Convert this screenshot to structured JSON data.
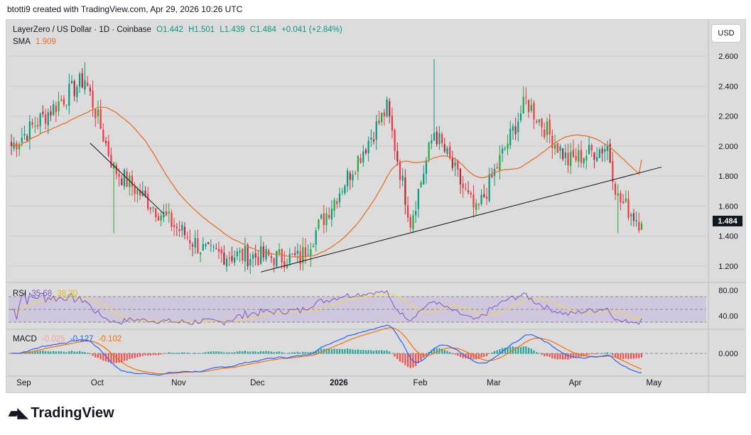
{
  "header": {
    "text": "btotti9 created with TradingView.com, Apr 29, 2026 10:26 UTC"
  },
  "legend": {
    "symbol": "LayerZero / US Dollar · 1D · Coinbase",
    "o": "O1.442",
    "h": "H1.501",
    "l": "L1.439",
    "c": "C1.484",
    "change": "+0.041 (+2.84%)",
    "sma_label": "SMA",
    "sma_value": "1.909"
  },
  "currency_button": "USD",
  "last_price": "1.484",
  "rsi": {
    "label": "RSI",
    "value": "35.68",
    "ma_value": "38.30"
  },
  "macd": {
    "label": "MACD",
    "hist_value": "-0.025",
    "macd_value": "-0.127",
    "signal_value": "-0.102"
  },
  "price_axis_labels": [
    "2.600",
    "2.400",
    "2.200",
    "2.000",
    "1.800",
    "1.600",
    "1.400",
    "1.200"
  ],
  "rsi_axis_labels": [
    "80.00",
    "40.00"
  ],
  "macd_axis_labels": [
    "0.000"
  ],
  "time_axis_labels": [
    "Sep",
    "Oct",
    "Nov",
    "Dec",
    "2026",
    "Feb",
    "Mar",
    "Apr",
    "May"
  ],
  "brand": "TradingView",
  "colors": {
    "up": "#089981",
    "up_bright": "#22ab39",
    "down": "#f23645",
    "down_dark": "#b22833",
    "sma": "#e8702a",
    "rsi": "#7e57c2",
    "rsi_ma": "#fdd835",
    "macd": "#2962ff",
    "signal": "#ff6d00",
    "trendline": "#131722"
  },
  "chart_data": [
    {
      "type": "candlestick",
      "title": "LayerZero / US Dollar · 1D · Coinbase",
      "ylim": [
        1.1,
        2.7
      ],
      "x_labels": [
        "Sep",
        "Oct",
        "Nov",
        "Dec",
        "2026",
        "Feb",
        "Mar",
        "Apr",
        "May"
      ],
      "y_ticks": [
        2.6,
        2.4,
        2.2,
        2.0,
        1.8,
        1.6,
        1.4,
        1.2
      ],
      "last": {
        "open": 1.442,
        "high": 1.501,
        "low": 1.439,
        "close": 1.484
      },
      "sma_last": 1.909,
      "key_closes": [
        {
          "date": "Sep 1",
          "value": 2.0
        },
        {
          "date": "Sep 29",
          "value": 2.45
        },
        {
          "date": "Oct 10",
          "value": 1.85
        },
        {
          "date": "Oct 31",
          "value": 1.5
        },
        {
          "date": "Nov 15",
          "value": 1.28
        },
        {
          "date": "Dec 20",
          "value": 1.25
        },
        {
          "date": "Jan 22",
          "value": 2.25
        },
        {
          "date": "Jan 31",
          "value": 1.5
        },
        {
          "date": "Feb 9",
          "value": 2.1
        },
        {
          "date": "Feb 25",
          "value": 1.55
        },
        {
          "date": "Mar 16",
          "value": 2.3
        },
        {
          "date": "Apr 1",
          "value": 1.9
        },
        {
          "date": "Apr 16",
          "value": 2.0
        },
        {
          "date": "Apr 20",
          "value": 1.65
        },
        {
          "date": "Apr 29",
          "value": 1.484
        }
      ]
    },
    {
      "type": "line",
      "title": "RSI",
      "ylim": [
        20,
        90
      ],
      "y_ticks": [
        80,
        40
      ],
      "last": 35.68,
      "ma_last": 38.3
    },
    {
      "type": "bar",
      "title": "MACD",
      "y_ticks": [
        0.0
      ],
      "macd_last": -0.127,
      "signal_last": -0.102,
      "hist_last": -0.025
    }
  ]
}
